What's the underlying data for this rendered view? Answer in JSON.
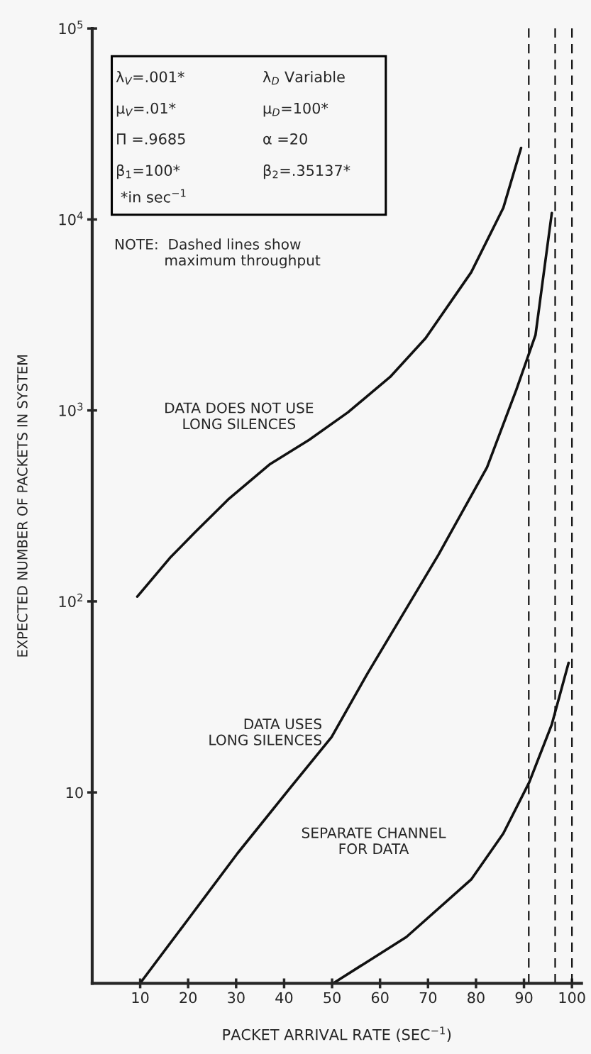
{
  "chart_data": {
    "type": "line",
    "xlabel": "PACKET ARRIVAL RATE (SEC$^{−1}$)",
    "ylabel": "EXPECTED NUMBER OF PACKETS IN SYSTEM",
    "log": "y",
    "xlim": [
      0,
      102
    ],
    "ylim": [
      1,
      100000
    ],
    "xticks": [
      10,
      20,
      30,
      40,
      50,
      60,
      70,
      80,
      90,
      100
    ],
    "yticks": [
      {
        "value": 10,
        "label": "10"
      },
      {
        "value": 100,
        "label": "10$^{2}$"
      },
      {
        "value": 1000,
        "label": "10$^{3}$"
      },
      {
        "value": 10000,
        "label": "10$^{4}$"
      },
      {
        "value": 100000,
        "label": "10$^{5}$"
      }
    ],
    "grid": false,
    "legend": false,
    "marker": "none",
    "line_style": "solid",
    "series": [
      {
        "color": "#111111",
        "x": [
          9.4,
          16.2,
          21.5,
          28.3,
          37.1,
          45.2,
          53.3,
          62.1,
          69.5,
          79.0,
          85.7,
          89.4
        ],
        "values": [
          106,
          169,
          231,
          341,
          524,
          701,
          977,
          1497,
          2390,
          5290,
          11500,
          23700
        ]
      },
      {
        "color": "#111111",
        "x": [
          10.1,
          20.2,
          30.3,
          41.2,
          49.9,
          57.4,
          72.2,
          82.3,
          88.4,
          92.4,
          95.8
        ],
        "values": [
          1.01,
          2.2,
          4.8,
          10.5,
          19.5,
          42,
          176,
          504,
          1282,
          2480,
          10800
        ]
      },
      {
        "color": "#111111",
        "x": [
          50.2,
          65.5,
          79.0,
          85.7,
          91.1,
          95.8,
          99.3
        ],
        "values": [
          1.0,
          1.75,
          3.5,
          6.1,
          11.3,
          22.7,
          47.7
        ]
      }
    ],
    "ref_lines": [
      {
        "axis": "x",
        "value": 91,
        "color": "#111111",
        "line_style": "dashed"
      },
      {
        "axis": "x",
        "value": 96.5,
        "color": "#111111",
        "line_style": "dashed"
      },
      {
        "axis": "x",
        "value": 100,
        "color": "#111111",
        "line_style": "dashed"
      }
    ],
    "annotations": [
      "λ$_{V}$=.001*",
      "λ$_{D}$ Variable",
      "μ$_{V}$=.01*",
      "μ$_{D}$=100*",
      "Π =.9685",
      "α =20",
      "β$_{1}$=100*",
      "β$_{2}$=.35137*",
      "*in sec$^{−1}$",
      "NOTE:  Dashed lines show\n           maximum throughput",
      "DATA DOES NOT USE\nLONG SILENCES",
      "DATA USES\nLONG SILENCES",
      "SEPARATE CHANNEL\nFOR DATA"
    ]
  }
}
